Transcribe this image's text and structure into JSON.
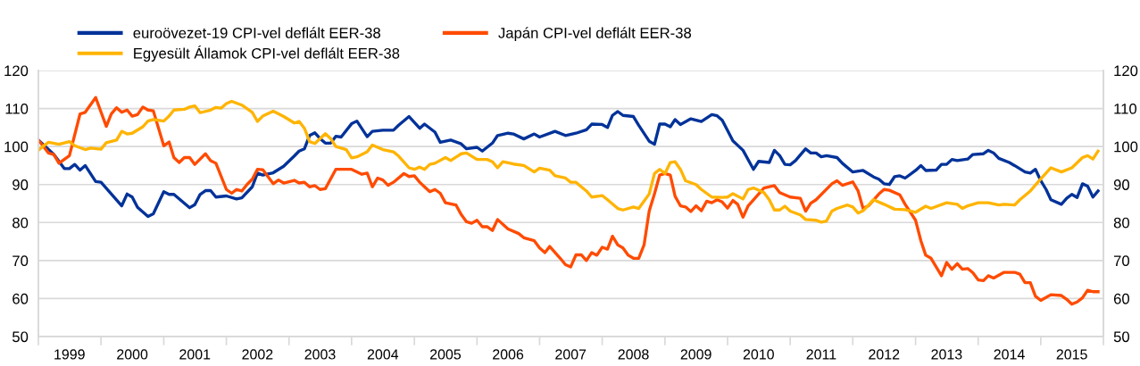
{
  "chart_data": {
    "type": "line",
    "xlim": [
      "1999-01",
      "2016-01"
    ],
    "xticks": [
      {
        "value": "1999-01",
        "label": null
      },
      {
        "value": "1999-07",
        "label": "1999"
      },
      {
        "value": "2000-01",
        "label": null
      },
      {
        "value": "2000-07",
        "label": "2000"
      },
      {
        "value": "2001-01",
        "label": null
      },
      {
        "value": "2001-07",
        "label": "2001"
      },
      {
        "value": "2002-01",
        "label": null
      },
      {
        "value": "2002-07",
        "label": "2002"
      },
      {
        "value": "2003-01",
        "label": null
      },
      {
        "value": "2003-07",
        "label": "2003"
      },
      {
        "value": "2004-01",
        "label": null
      },
      {
        "value": "2004-07",
        "label": "2004"
      },
      {
        "value": "2005-01",
        "label": null
      },
      {
        "value": "2005-07",
        "label": "2005"
      },
      {
        "value": "2006-01",
        "label": null
      },
      {
        "value": "2006-07",
        "label": "2006"
      },
      {
        "value": "2007-01",
        "label": null
      },
      {
        "value": "2007-07",
        "label": "2007"
      },
      {
        "value": "2008-01",
        "label": null
      },
      {
        "value": "2008-07",
        "label": "2008"
      },
      {
        "value": "2009-01",
        "label": null
      },
      {
        "value": "2009-07",
        "label": "2009"
      },
      {
        "value": "2010-01",
        "label": null
      },
      {
        "value": "2010-07",
        "label": "2010"
      },
      {
        "value": "2011-01",
        "label": null
      },
      {
        "value": "2011-07",
        "label": "2011"
      },
      {
        "value": "2012-01",
        "label": null
      },
      {
        "value": "2012-07",
        "label": "2012"
      },
      {
        "value": "2013-01",
        "label": null
      },
      {
        "value": "2013-07",
        "label": "2013"
      },
      {
        "value": "2014-01",
        "label": null
      },
      {
        "value": "2014-07",
        "label": "2014"
      },
      {
        "value": "2015-01",
        "label": null
      },
      {
        "value": "2015-07",
        "label": "2015"
      },
      {
        "value": "2016-01",
        "label": null
      }
    ],
    "ylim": [
      50,
      120
    ],
    "yticks": [
      50,
      60,
      70,
      80,
      90,
      100,
      110,
      120
    ],
    "y2lim": [
      50,
      120
    ],
    "y2ticks": [
      50,
      60,
      70,
      80,
      90,
      100,
      110,
      120
    ],
    "grid": "y",
    "legend": "top left",
    "marker": "none",
    "line_style": "solid",
    "series": [
      {
        "name": "euroövezet-19 CPI-vel deflált EER-38",
        "color": "#003299",
        "x": [
          "1999-01",
          "1999-04",
          "1999-06",
          "1999-07",
          "1999-08",
          "1999-09",
          "1999-10",
          "1999-12",
          "2000-01",
          "2000-05",
          "2000-06",
          "2000-07",
          "2000-08",
          "2000-10",
          "2000-11",
          "2001-01",
          "2001-02",
          "2001-03",
          "2001-06",
          "2001-07",
          "2001-08",
          "2001-09",
          "2001-10",
          "2001-11",
          "2002-01",
          "2002-03",
          "2002-04",
          "2002-06",
          "2002-07",
          "2002-08",
          "2002-10",
          "2002-12",
          "2003-02",
          "2003-03",
          "2003-04",
          "2003-05",
          "2003-06",
          "2003-07",
          "2003-08",
          "2003-09",
          "2003-10",
          "2003-11",
          "2004-01",
          "2004-02",
          "2004-04",
          "2004-05",
          "2004-07",
          "2004-09",
          "2004-10",
          "2004-12",
          "2005-02",
          "2005-03",
          "2005-05",
          "2005-06",
          "2005-08",
          "2005-10",
          "2005-11",
          "2006-01",
          "2006-02",
          "2006-04",
          "2006-05",
          "2006-07",
          "2006-08",
          "2006-10",
          "2006-12",
          "2007-01",
          "2007-04",
          "2007-06",
          "2007-08",
          "2007-10",
          "2007-11",
          "2008-01",
          "2008-02",
          "2008-03",
          "2008-04",
          "2008-05",
          "2008-07",
          "2008-08",
          "2008-10",
          "2008-11",
          "2008-12",
          "2009-01",
          "2009-02",
          "2009-03",
          "2009-04",
          "2009-06",
          "2009-08",
          "2009-10",
          "2009-11",
          "2009-12",
          "2010-02",
          "2010-04",
          "2010-06",
          "2010-07",
          "2010-09",
          "2010-10",
          "2010-11",
          "2010-12",
          "2011-01",
          "2011-02",
          "2011-04",
          "2011-05",
          "2011-06",
          "2011-07",
          "2011-08",
          "2011-10",
          "2011-11",
          "2012-01",
          "2012-03",
          "2012-05",
          "2012-06",
          "2012-07",
          "2012-08",
          "2012-09",
          "2012-10",
          "2012-11",
          "2013-01",
          "2013-02",
          "2013-03",
          "2013-05",
          "2013-06",
          "2013-07",
          "2013-08",
          "2013-09",
          "2013-11",
          "2013-12",
          "2014-02",
          "2014-03",
          "2014-04",
          "2014-05",
          "2014-07",
          "2014-08",
          "2014-10",
          "2014-11",
          "2014-12",
          "2015-01",
          "2015-02",
          "2015-03",
          "2015-05",
          "2015-06",
          "2015-07",
          "2015-08",
          "2015-09",
          "2015-10",
          "2015-11",
          "2015-12"
        ],
        "values": [
          101.7,
          97.9,
          94.2,
          94.2,
          95.3,
          93.8,
          95,
          90.8,
          90.6,
          84.4,
          87.5,
          86.7,
          84,
          81.6,
          82.3,
          88.1,
          87.4,
          87.4,
          83.9,
          84.7,
          87.4,
          88.4,
          88.4,
          86.7,
          87,
          86.2,
          86.5,
          89.4,
          93,
          92.5,
          93.1,
          94.8,
          97.5,
          98.8,
          99.4,
          102.9,
          103.6,
          102.1,
          100.9,
          100.9,
          102.7,
          102.5,
          106,
          106.7,
          102.6,
          104,
          104.3,
          104.3,
          105.6,
          107.9,
          104.8,
          105.9,
          103.8,
          101.1,
          101.7,
          100.7,
          99.4,
          99.8,
          98.8,
          100.9,
          102.9,
          103.5,
          103.3,
          102,
          103.3,
          102.5,
          104,
          102.9,
          103.5,
          104.4,
          105.9,
          105.8,
          105,
          108.2,
          109.2,
          108.2,
          107.9,
          105.6,
          101.4,
          100.6,
          105.9,
          105.9,
          105.2,
          107.1,
          105.8,
          107.3,
          106.6,
          108.4,
          108.1,
          106.9,
          101.5,
          99,
          94,
          96.1,
          95.8,
          99,
          97.6,
          95.3,
          95.2,
          96.3,
          99.4,
          98.3,
          98.3,
          97.3,
          97.6,
          97.1,
          95.6,
          93.3,
          93.7,
          92,
          91.4,
          90.2,
          90,
          92.1,
          92.3,
          91.7,
          93.7,
          95,
          93.7,
          93.8,
          95.3,
          95.3,
          96.6,
          96.3,
          96.7,
          97.9,
          98.1,
          99,
          98.3,
          96.9,
          95.8,
          95,
          93.3,
          93,
          94,
          91,
          88.7,
          86,
          84.8,
          86.4,
          87.4,
          86.6,
          90.2,
          89.6,
          86.7,
          88.3
        ]
      },
      {
        "name": "Japán CPI-vel deflált EER-38",
        "color": "#ff4b00",
        "x": [
          "1999-01",
          "1999-03",
          "1999-04",
          "1999-05",
          "1999-07",
          "1999-09",
          "1999-10",
          "1999-12",
          "2000-02",
          "2000-03",
          "2000-04",
          "2000-05",
          "2000-06",
          "2000-07",
          "2000-08",
          "2000-09",
          "2000-10",
          "2000-11",
          "2001-01",
          "2001-02",
          "2001-03",
          "2001-04",
          "2001-05",
          "2001-06",
          "2001-07",
          "2001-09",
          "2001-10",
          "2001-11",
          "2002-01",
          "2002-02",
          "2002-03",
          "2002-04",
          "2002-05",
          "2002-06",
          "2002-07",
          "2002-08",
          "2002-10",
          "2002-11",
          "2002-12",
          "2003-02",
          "2003-03",
          "2003-04",
          "2003-05",
          "2003-06",
          "2003-07",
          "2003-08",
          "2003-10",
          "2003-12",
          "2004-01",
          "2004-03",
          "2004-04",
          "2004-05",
          "2004-06",
          "2004-07",
          "2004-08",
          "2004-09",
          "2004-11",
          "2004-12",
          "2005-01",
          "2005-02",
          "2005-03",
          "2005-04",
          "2005-05",
          "2005-06",
          "2005-07",
          "2005-09",
          "2005-10",
          "2005-11",
          "2005-12",
          "2006-01",
          "2006-02",
          "2006-03",
          "2006-04",
          "2006-05",
          "2006-07",
          "2006-09",
          "2006-10",
          "2006-12",
          "2007-01",
          "2007-02",
          "2007-03",
          "2007-05",
          "2007-06",
          "2007-07",
          "2007-08",
          "2007-09",
          "2007-10",
          "2007-11",
          "2007-12",
          "2008-01",
          "2008-02",
          "2008-03",
          "2008-04",
          "2008-05",
          "2008-06",
          "2008-07",
          "2008-08",
          "2008-09",
          "2008-10",
          "2008-11",
          "2008-12",
          "2009-01",
          "2009-02",
          "2009-03",
          "2009-04",
          "2009-05",
          "2009-06",
          "2009-07",
          "2009-08",
          "2009-09",
          "2009-10",
          "2009-11",
          "2009-12",
          "2010-01",
          "2010-02",
          "2010-03",
          "2010-04",
          "2010-05",
          "2010-07",
          "2010-08",
          "2010-10",
          "2010-11",
          "2011-01",
          "2011-03",
          "2011-04",
          "2011-05",
          "2011-06",
          "2011-09",
          "2011-10",
          "2011-11",
          "2012-01",
          "2012-02",
          "2012-03",
          "2012-04",
          "2012-06",
          "2012-07",
          "2012-08",
          "2012-10",
          "2012-11",
          "2013-01",
          "2013-02",
          "2013-03",
          "2013-04",
          "2013-06",
          "2013-07",
          "2013-08",
          "2013-09",
          "2013-10",
          "2013-11",
          "2013-12",
          "2014-01",
          "2014-02",
          "2014-03",
          "2014-04",
          "2014-06",
          "2014-08",
          "2014-09",
          "2014-10",
          "2014-11",
          "2014-12",
          "2015-01",
          "2015-03",
          "2015-05",
          "2015-06",
          "2015-07",
          "2015-08",
          "2015-09",
          "2015-10",
          "2015-11",
          "2015-12"
        ],
        "values": [
          101.7,
          98.3,
          97.9,
          95.6,
          97.6,
          108.6,
          109,
          112.9,
          105.3,
          108.6,
          110.2,
          109,
          109.6,
          108,
          108.4,
          110.4,
          109.6,
          109.4,
          100.2,
          101.2,
          97.1,
          95.8,
          97.1,
          97.1,
          95.3,
          98.1,
          96.3,
          95.6,
          88.7,
          87.7,
          88.7,
          88.3,
          90,
          91.4,
          94,
          93.9,
          90.2,
          91.2,
          90.4,
          91.1,
          90.4,
          90.6,
          89.4,
          89.7,
          88.7,
          88.9,
          94,
          94,
          94,
          92.7,
          93,
          89.4,
          91.7,
          91.2,
          89.8,
          90.6,
          92.9,
          92.1,
          92.3,
          90.6,
          89.4,
          88.1,
          88.7,
          87.7,
          85.2,
          84.6,
          82.1,
          80.2,
          79.8,
          80.6,
          78.9,
          78.9,
          77.9,
          80.8,
          78.3,
          77.1,
          76,
          75.2,
          73.3,
          72.1,
          73.7,
          70.6,
          68.9,
          68.3,
          71.5,
          71.5,
          70,
          72.1,
          71.4,
          73.5,
          73,
          76.4,
          74.1,
          73.3,
          71.4,
          70.6,
          70.6,
          74.1,
          83,
          87.6,
          92.5,
          92.9,
          92.5,
          86.9,
          84.4,
          84.1,
          82.9,
          84.4,
          83.1,
          85.6,
          85.2,
          86,
          85.4,
          83.8,
          85.8,
          84.8,
          81.4,
          84.4,
          87.5,
          89.1,
          89.7,
          87.9,
          86.7,
          86.4,
          83,
          85.1,
          86,
          90.2,
          91,
          89.8,
          90.7,
          88.3,
          83.7,
          84.4,
          87.5,
          88.7,
          88.5,
          87.3,
          84.8,
          80.6,
          75.2,
          71.4,
          70.6,
          66,
          69.5,
          67.7,
          69.2,
          67.7,
          67.9,
          66.8,
          64.9,
          64.7,
          66,
          65.4,
          66.9,
          66.9,
          66.4,
          64.2,
          64.2,
          60.6,
          59.5,
          61,
          60.8,
          59.8,
          58.5,
          59.1,
          60.2,
          62.2,
          61.8,
          61.8
        ]
      },
      {
        "name": "Egyesült Államok CPI-vel deflált EER-38",
        "color": "#ffb400",
        "x": [
          "1999-01",
          "1999-02",
          "1999-03",
          "1999-05",
          "1999-07",
          "1999-08",
          "1999-10",
          "1999-11",
          "2000-01",
          "2000-02",
          "2000-04",
          "2000-05",
          "2000-06",
          "2000-07",
          "2000-09",
          "2000-10",
          "2000-11",
          "2001-01",
          "2001-02",
          "2001-03",
          "2001-05",
          "2001-06",
          "2001-07",
          "2001-08",
          "2001-10",
          "2001-11",
          "2001-12",
          "2002-01",
          "2002-02",
          "2002-04",
          "2002-06",
          "2002-07",
          "2002-08",
          "2002-10",
          "2002-12",
          "2003-02",
          "2003-03",
          "2003-04",
          "2003-05",
          "2003-06",
          "2003-08",
          "2003-09",
          "2003-10",
          "2003-12",
          "2004-01",
          "2004-02",
          "2004-04",
          "2004-05",
          "2004-07",
          "2004-09",
          "2004-10",
          "2004-12",
          "2005-01",
          "2005-02",
          "2005-03",
          "2005-04",
          "2005-05",
          "2005-07",
          "2005-08",
          "2005-10",
          "2005-11",
          "2006-01",
          "2006-03",
          "2006-04",
          "2006-05",
          "2006-06",
          "2006-08",
          "2006-10",
          "2006-12",
          "2007-01",
          "2007-03",
          "2007-04",
          "2007-06",
          "2007-07",
          "2007-08",
          "2007-10",
          "2007-11",
          "2008-01",
          "2008-02",
          "2008-04",
          "2008-05",
          "2008-07",
          "2008-08",
          "2008-10",
          "2008-11",
          "2008-12",
          "2009-01",
          "2009-02",
          "2009-03",
          "2009-04",
          "2009-05",
          "2009-07",
          "2009-08",
          "2009-10",
          "2009-12",
          "2010-01",
          "2010-02",
          "2010-04",
          "2010-05",
          "2010-06",
          "2010-08",
          "2010-09",
          "2010-10",
          "2010-11",
          "2010-12",
          "2011-01",
          "2011-03",
          "2011-04",
          "2011-06",
          "2011-07",
          "2011-08",
          "2011-09",
          "2011-10",
          "2011-12",
          "2012-01",
          "2012-02",
          "2012-03",
          "2012-05",
          "2012-07",
          "2012-09",
          "2012-11",
          "2013-01",
          "2013-03",
          "2013-04",
          "2013-07",
          "2013-09",
          "2013-10",
          "2013-11",
          "2014-01",
          "2014-03",
          "2014-05",
          "2014-06",
          "2014-08",
          "2014-09",
          "2014-11",
          "2015-01",
          "2015-03",
          "2015-05",
          "2015-07",
          "2015-09",
          "2015-10",
          "2015-11",
          "2015-12"
        ],
        "values": [
          99,
          100.2,
          101.1,
          100.6,
          101.3,
          100.2,
          99.2,
          99.6,
          99.3,
          101,
          101.7,
          104,
          103.3,
          103.5,
          105.2,
          106.7,
          107.1,
          106.7,
          108,
          109.6,
          109.8,
          110.4,
          110.7,
          108.9,
          109.6,
          110.3,
          110.1,
          111.3,
          111.9,
          110.9,
          109,
          106.6,
          108,
          109.3,
          107.9,
          106.2,
          106.6,
          104.8,
          101.3,
          100.8,
          103.4,
          102.1,
          100,
          99.2,
          97,
          97.3,
          98.6,
          100.4,
          99.2,
          98.6,
          97.5,
          94.4,
          94,
          94.6,
          94,
          95.3,
          95.6,
          97.1,
          96.3,
          98.1,
          98.3,
          96.6,
          96.6,
          96,
          94.4,
          96,
          95.4,
          95,
          93.3,
          94.3,
          93.8,
          92.3,
          91.7,
          90.6,
          90.6,
          88.3,
          86.7,
          87.1,
          86,
          83.7,
          83.3,
          84.1,
          83.7,
          87.5,
          92.9,
          94,
          92.9,
          95.8,
          96,
          94,
          91,
          90,
          88.7,
          86.7,
          86.6,
          86.7,
          87.6,
          86.2,
          88.7,
          89.1,
          87.9,
          86,
          83.3,
          83.3,
          84.3,
          83,
          82,
          80.8,
          80.6,
          80.1,
          80.4,
          83,
          83.7,
          84.6,
          84.1,
          82.5,
          83.1,
          86,
          84.8,
          83.5,
          83.4,
          82.7,
          84.3,
          83.7,
          85.2,
          84.8,
          83.7,
          84.4,
          85.2,
          85.2,
          84.6,
          84.8,
          84.6,
          86,
          88.3,
          91.5,
          94.4,
          93.3,
          94.4,
          97.1,
          97.6,
          96.7,
          98.8
        ]
      }
    ]
  }
}
